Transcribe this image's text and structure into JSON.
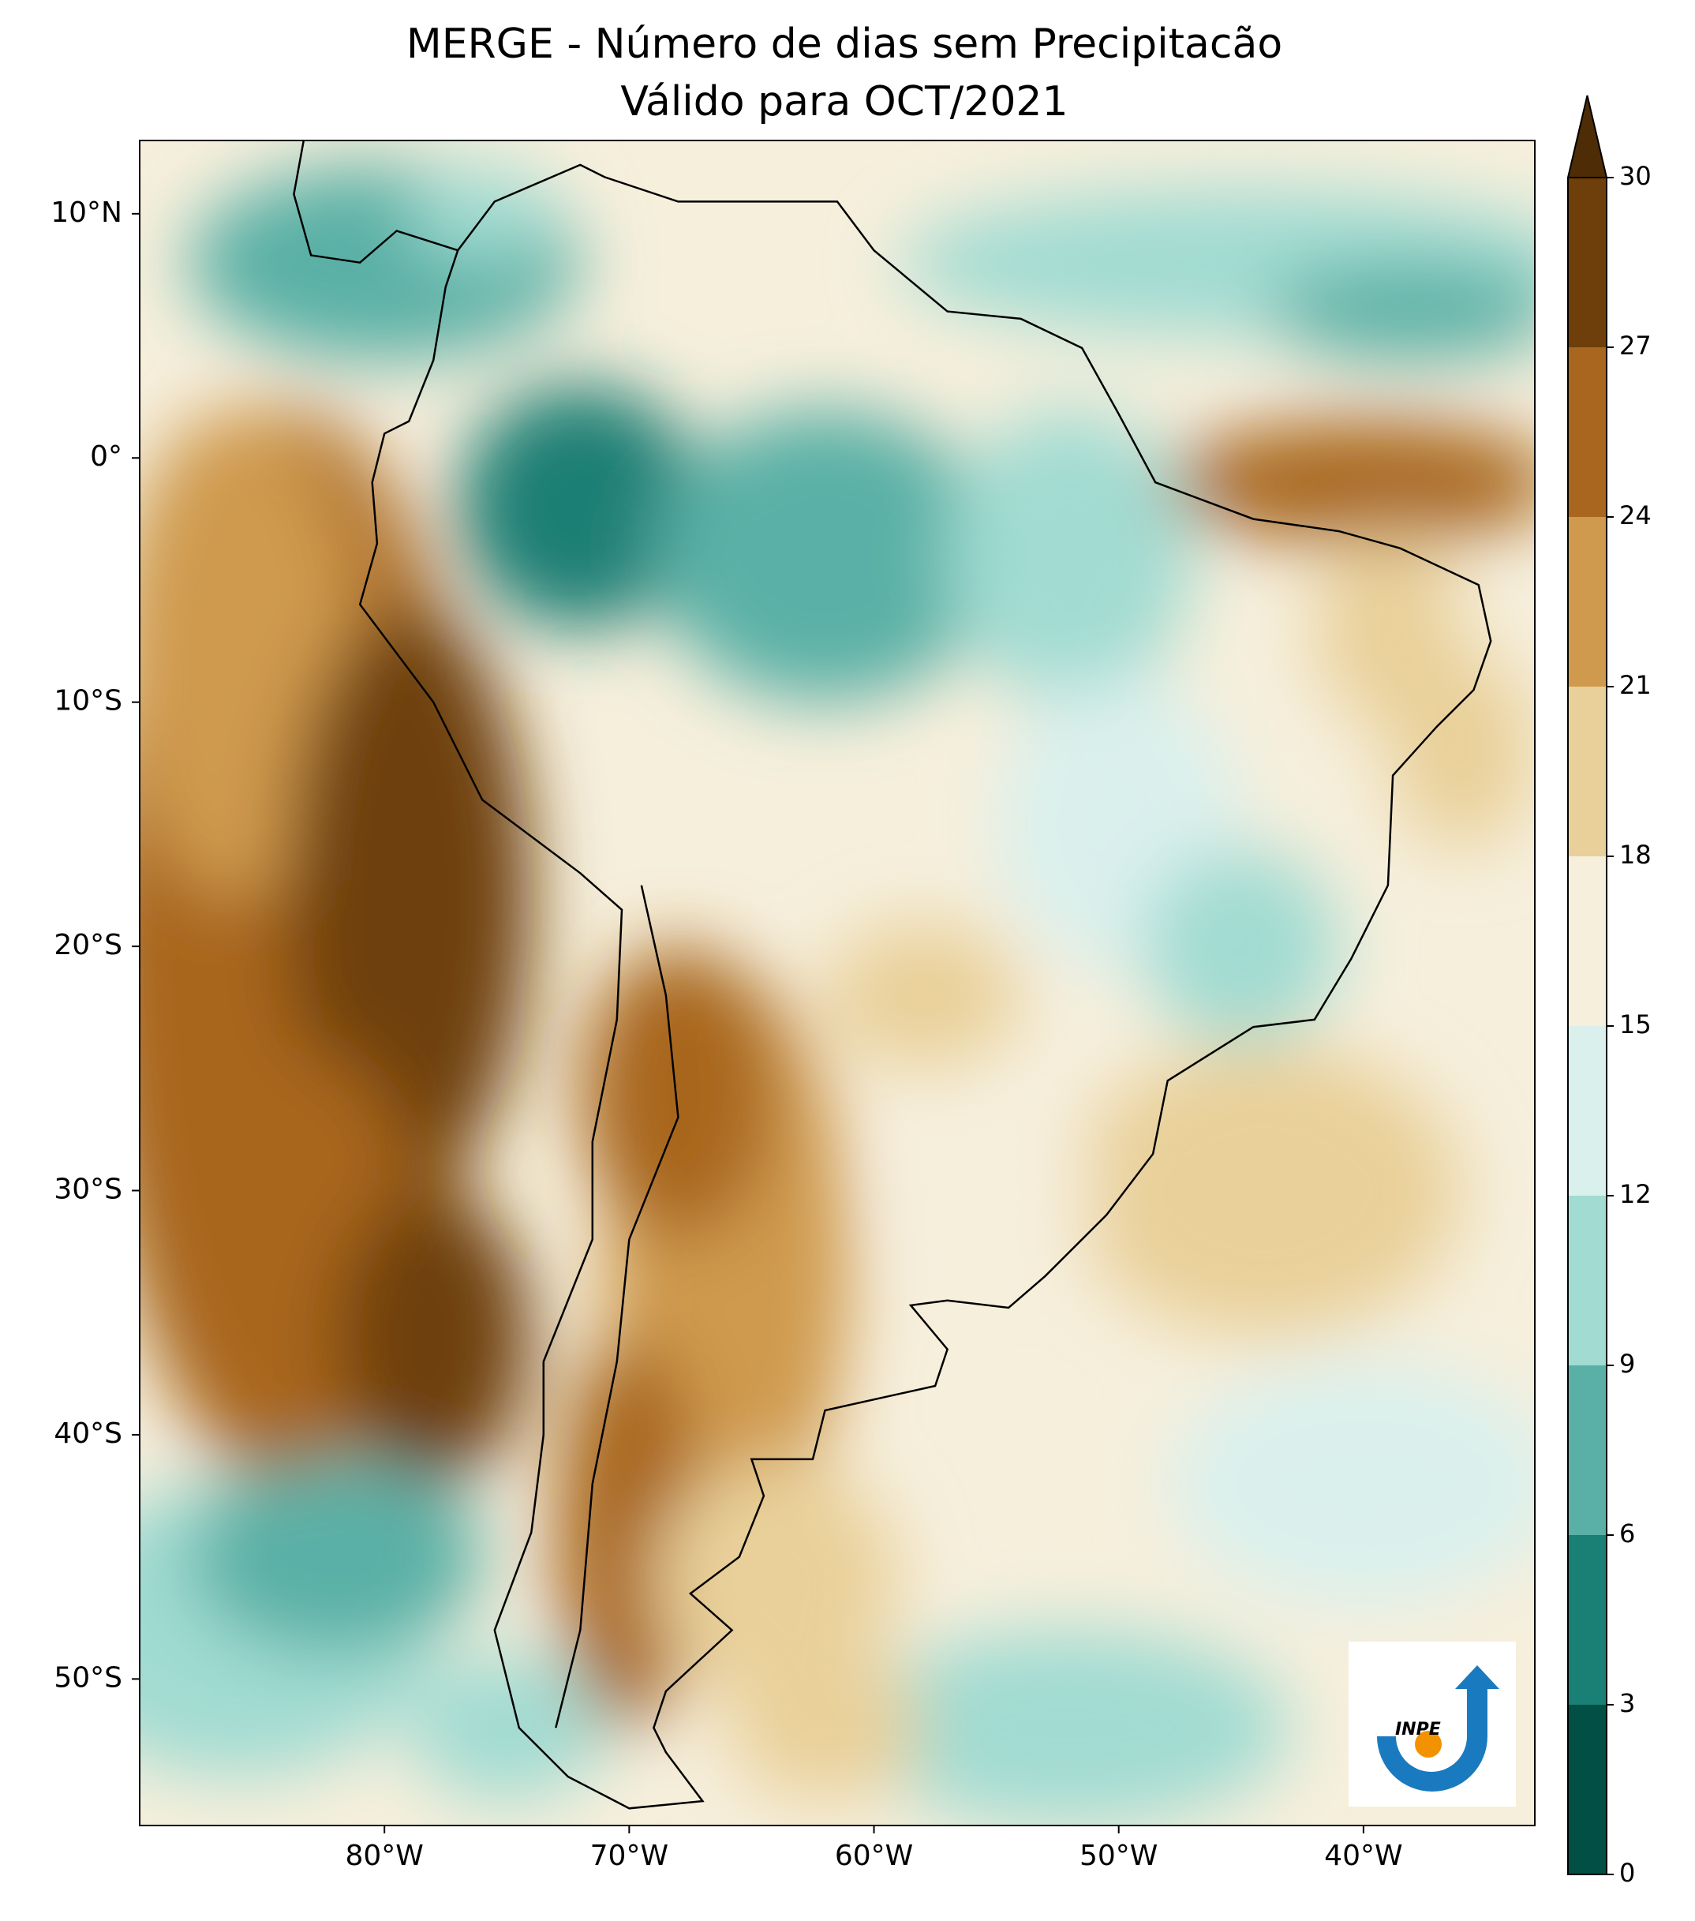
{
  "title": "MERGE - Número de dias sem Precipitacão",
  "subtitle": "Válido para OCT/2021",
  "map": {
    "xlim": [
      -90,
      -33
    ],
    "ylim": [
      -56,
      13
    ],
    "xticks": [
      {
        "value": -80,
        "label": "80°W"
      },
      {
        "value": -70,
        "label": "70°W"
      },
      {
        "value": -60,
        "label": "60°W"
      },
      {
        "value": -50,
        "label": "50°W"
      },
      {
        "value": -40,
        "label": "40°W"
      }
    ],
    "yticks": [
      {
        "value": 10,
        "label": "10°N"
      },
      {
        "value": 0,
        "label": "0°"
      },
      {
        "value": -10,
        "label": "10°S"
      },
      {
        "value": -20,
        "label": "20°S"
      },
      {
        "value": -30,
        "label": "30°S"
      },
      {
        "value": -40,
        "label": "40°S"
      },
      {
        "value": -50,
        "label": "50°S"
      }
    ]
  },
  "colorbar": {
    "levels": [
      0,
      3,
      6,
      9,
      12,
      15,
      18,
      21,
      24,
      27,
      30
    ],
    "colors": [
      "#014f45",
      "#1a7f74",
      "#5ab0a6",
      "#a1dbd2",
      "#daf0ed",
      "#f6efdc",
      "#e9d09a",
      "#cf9a4d",
      "#a8661f",
      "#6e3f0a"
    ],
    "extend_color": "#4e2c05"
  },
  "logo": {
    "text": "INPE"
  }
}
